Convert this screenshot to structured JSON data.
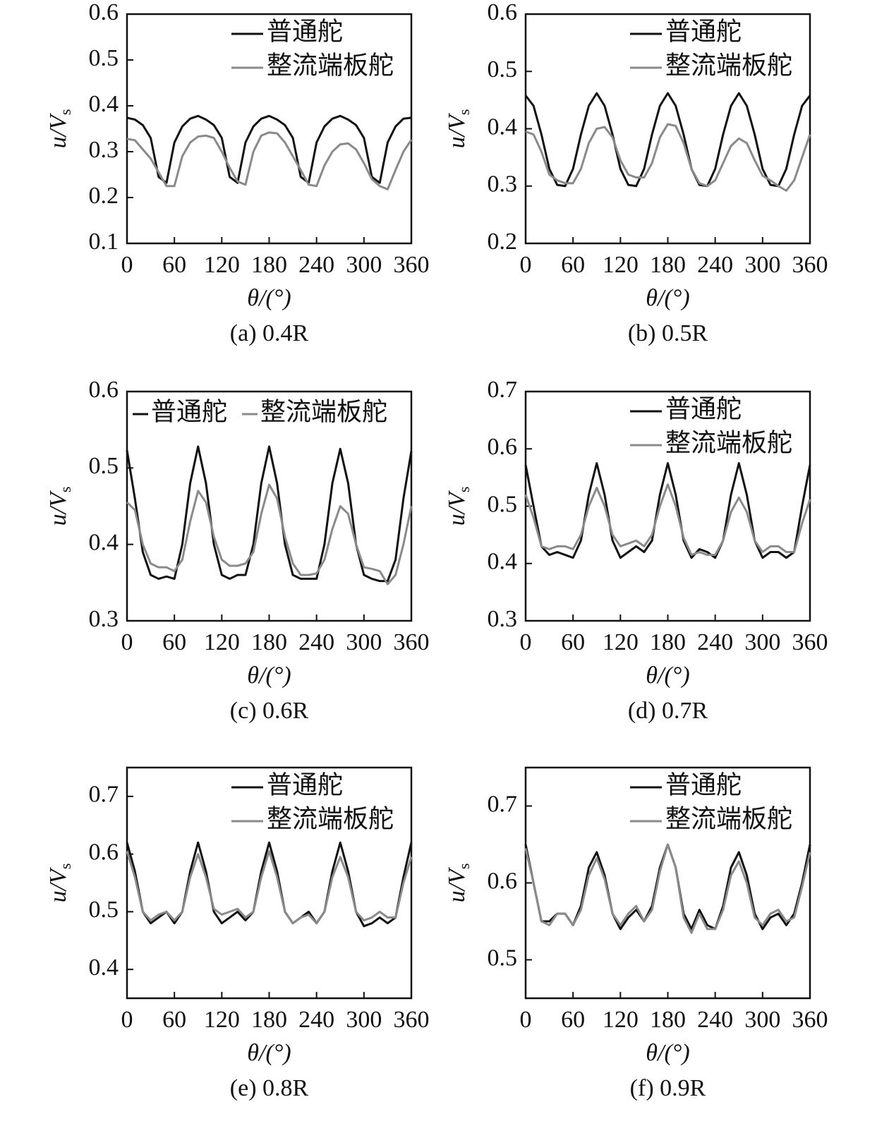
{
  "chart_data": [
    {
      "type": "line",
      "caption": "(a) 0.4R",
      "ylabel": "u/V",
      "ylabel_sub": "s",
      "xlabel": "θ/(°)",
      "x": [
        0,
        10,
        20,
        30,
        40,
        50,
        60,
        70,
        80,
        90,
        100,
        110,
        120,
        130,
        140,
        150,
        160,
        170,
        180,
        190,
        200,
        210,
        220,
        230,
        240,
        250,
        260,
        270,
        280,
        290,
        300,
        310,
        320,
        330,
        340,
        350,
        360
      ],
      "xlim": [
        0,
        360
      ],
      "xticks": [
        0,
        60,
        120,
        180,
        240,
        300,
        360
      ],
      "ylim": [
        0.1,
        0.6
      ],
      "yticks": [
        0.1,
        0.2,
        0.3,
        0.4,
        0.5,
        0.6
      ],
      "legend": "upper right",
      "legend_layout": "column",
      "series": [
        {
          "name": "普通舵",
          "color": "#111111",
          "values": [
            0.374,
            0.37,
            0.358,
            0.33,
            0.245,
            0.232,
            0.32,
            0.355,
            0.372,
            0.378,
            0.37,
            0.358,
            0.33,
            0.245,
            0.232,
            0.32,
            0.355,
            0.372,
            0.378,
            0.37,
            0.358,
            0.33,
            0.245,
            0.232,
            0.32,
            0.355,
            0.372,
            0.378,
            0.37,
            0.358,
            0.33,
            0.245,
            0.232,
            0.32,
            0.355,
            0.372,
            0.374
          ]
        },
        {
          "name": "整流端板舵",
          "color": "#8a8a8a",
          "values": [
            0.328,
            0.325,
            0.305,
            0.285,
            0.255,
            0.225,
            0.225,
            0.29,
            0.32,
            0.333,
            0.335,
            0.33,
            0.3,
            0.265,
            0.235,
            0.228,
            0.3,
            0.335,
            0.342,
            0.34,
            0.32,
            0.29,
            0.26,
            0.228,
            0.225,
            0.27,
            0.3,
            0.316,
            0.318,
            0.305,
            0.275,
            0.24,
            0.225,
            0.218,
            0.26,
            0.3,
            0.326
          ]
        }
      ]
    },
    {
      "type": "line",
      "caption": "(b) 0.5R",
      "ylabel": "u/V",
      "ylabel_sub": "s",
      "xlabel": "θ/(°)",
      "x": [
        0,
        10,
        20,
        30,
        40,
        50,
        60,
        70,
        80,
        90,
        100,
        110,
        120,
        130,
        140,
        150,
        160,
        170,
        180,
        190,
        200,
        210,
        220,
        230,
        240,
        250,
        260,
        270,
        280,
        290,
        300,
        310,
        320,
        330,
        340,
        350,
        360
      ],
      "xlim": [
        0,
        360
      ],
      "xticks": [
        0,
        60,
        120,
        180,
        240,
        300,
        360
      ],
      "ylim": [
        0.2,
        0.6
      ],
      "yticks": [
        0.2,
        0.3,
        0.4,
        0.5,
        0.6
      ],
      "legend": "upper right",
      "legend_layout": "column",
      "series": [
        {
          "name": "普通舵",
          "color": "#111111",
          "values": [
            0.458,
            0.44,
            0.39,
            0.33,
            0.302,
            0.3,
            0.33,
            0.39,
            0.44,
            0.462,
            0.44,
            0.39,
            0.33,
            0.302,
            0.3,
            0.33,
            0.39,
            0.44,
            0.462,
            0.44,
            0.39,
            0.33,
            0.302,
            0.3,
            0.33,
            0.39,
            0.44,
            0.462,
            0.44,
            0.39,
            0.33,
            0.302,
            0.3,
            0.33,
            0.39,
            0.44,
            0.458
          ]
        },
        {
          "name": "整流端板舵",
          "color": "#8a8a8a",
          "values": [
            0.395,
            0.39,
            0.36,
            0.32,
            0.31,
            0.305,
            0.305,
            0.33,
            0.375,
            0.4,
            0.403,
            0.385,
            0.345,
            0.32,
            0.315,
            0.315,
            0.34,
            0.385,
            0.408,
            0.405,
            0.375,
            0.33,
            0.305,
            0.3,
            0.31,
            0.34,
            0.37,
            0.383,
            0.375,
            0.345,
            0.318,
            0.31,
            0.3,
            0.292,
            0.31,
            0.35,
            0.39
          ]
        }
      ]
    },
    {
      "type": "line",
      "caption": "(c) 0.6R",
      "ylabel": "u/V",
      "ylabel_sub": "s",
      "xlabel": "θ/(°)",
      "x": [
        0,
        10,
        20,
        30,
        40,
        50,
        60,
        70,
        80,
        90,
        100,
        110,
        120,
        130,
        140,
        150,
        160,
        170,
        180,
        190,
        200,
        210,
        220,
        230,
        240,
        250,
        260,
        270,
        280,
        290,
        300,
        310,
        320,
        330,
        340,
        350,
        360
      ],
      "xlim": [
        0,
        360
      ],
      "xticks": [
        0,
        60,
        120,
        180,
        240,
        300,
        360
      ],
      "ylim": [
        0.3,
        0.6
      ],
      "yticks": [
        0.3,
        0.4,
        0.5,
        0.6
      ],
      "legend": "upper right",
      "legend_layout": "row",
      "series": [
        {
          "name": "普通舵",
          "color": "#111111",
          "values": [
            0.523,
            0.46,
            0.39,
            0.36,
            0.355,
            0.358,
            0.355,
            0.4,
            0.48,
            0.528,
            0.48,
            0.4,
            0.36,
            0.355,
            0.36,
            0.36,
            0.4,
            0.48,
            0.528,
            0.48,
            0.4,
            0.36,
            0.355,
            0.355,
            0.355,
            0.4,
            0.48,
            0.525,
            0.48,
            0.4,
            0.36,
            0.355,
            0.352,
            0.352,
            0.38,
            0.46,
            0.522
          ]
        },
        {
          "name": "整流端板舵",
          "color": "#8a8a8a",
          "values": [
            0.455,
            0.445,
            0.4,
            0.375,
            0.37,
            0.37,
            0.365,
            0.38,
            0.43,
            0.47,
            0.455,
            0.41,
            0.38,
            0.372,
            0.372,
            0.375,
            0.39,
            0.44,
            0.478,
            0.46,
            0.41,
            0.375,
            0.36,
            0.36,
            0.362,
            0.38,
            0.42,
            0.45,
            0.44,
            0.4,
            0.37,
            0.368,
            0.365,
            0.348,
            0.36,
            0.4,
            0.45
          ]
        }
      ]
    },
    {
      "type": "line",
      "caption": "(d) 0.7R",
      "ylabel": "u/V",
      "ylabel_sub": "s",
      "xlabel": "θ/(°)",
      "x": [
        0,
        10,
        20,
        30,
        40,
        50,
        60,
        70,
        80,
        90,
        100,
        110,
        120,
        130,
        140,
        150,
        160,
        170,
        180,
        190,
        200,
        210,
        220,
        230,
        240,
        250,
        260,
        270,
        280,
        290,
        300,
        310,
        320,
        330,
        340,
        350,
        360
      ],
      "xlim": [
        0,
        360
      ],
      "xticks": [
        0,
        60,
        120,
        180,
        240,
        300,
        360
      ],
      "ylim": [
        0.3,
        0.7
      ],
      "yticks": [
        0.3,
        0.4,
        0.5,
        0.6,
        0.7
      ],
      "legend": "upper right",
      "legend_layout": "column",
      "series": [
        {
          "name": "普通舵",
          "color": "#111111",
          "values": [
            0.572,
            0.5,
            0.43,
            0.415,
            0.42,
            0.415,
            0.41,
            0.44,
            0.52,
            0.575,
            0.52,
            0.44,
            0.41,
            0.42,
            0.43,
            0.42,
            0.44,
            0.52,
            0.575,
            0.52,
            0.44,
            0.41,
            0.425,
            0.42,
            0.41,
            0.44,
            0.52,
            0.575,
            0.52,
            0.44,
            0.41,
            0.42,
            0.42,
            0.41,
            0.42,
            0.5,
            0.572
          ]
        },
        {
          "name": "整流端板舵",
          "color": "#8a8a8a",
          "values": [
            0.52,
            0.48,
            0.43,
            0.425,
            0.43,
            0.43,
            0.425,
            0.45,
            0.5,
            0.532,
            0.5,
            0.45,
            0.43,
            0.435,
            0.44,
            0.43,
            0.45,
            0.5,
            0.538,
            0.5,
            0.445,
            0.415,
            0.42,
            0.415,
            0.415,
            0.44,
            0.49,
            0.515,
            0.49,
            0.44,
            0.42,
            0.43,
            0.43,
            0.42,
            0.42,
            0.47,
            0.512
          ]
        }
      ]
    },
    {
      "type": "line",
      "caption": "(e) 0.8R",
      "ylabel": "u/V",
      "ylabel_sub": "s",
      "xlabel": "θ/(°)",
      "x": [
        0,
        10,
        20,
        30,
        40,
        50,
        60,
        70,
        80,
        90,
        100,
        110,
        120,
        130,
        140,
        150,
        160,
        170,
        180,
        190,
        200,
        210,
        220,
        230,
        240,
        250,
        260,
        270,
        280,
        290,
        300,
        310,
        320,
        330,
        340,
        350,
        360
      ],
      "xlim": [
        0,
        360
      ],
      "xticks": [
        0,
        60,
        120,
        180,
        240,
        300,
        360
      ],
      "ylim": [
        0.35,
        0.75
      ],
      "yticks": [
        0.4,
        0.5,
        0.6,
        0.7
      ],
      "legend": "upper right",
      "legend_layout": "column",
      "series": [
        {
          "name": "普通舵",
          "color": "#111111",
          "values": [
            0.62,
            0.57,
            0.5,
            0.48,
            0.49,
            0.5,
            0.48,
            0.5,
            0.57,
            0.62,
            0.57,
            0.5,
            0.48,
            0.49,
            0.5,
            0.485,
            0.5,
            0.57,
            0.62,
            0.57,
            0.5,
            0.48,
            0.49,
            0.5,
            0.48,
            0.5,
            0.57,
            0.62,
            0.57,
            0.5,
            0.475,
            0.48,
            0.49,
            0.48,
            0.49,
            0.56,
            0.62
          ]
        },
        {
          "name": "整流端板舵",
          "color": "#8a8a8a",
          "values": [
            0.605,
            0.56,
            0.5,
            0.485,
            0.495,
            0.5,
            0.485,
            0.5,
            0.56,
            0.6,
            0.56,
            0.505,
            0.495,
            0.5,
            0.505,
            0.49,
            0.5,
            0.56,
            0.605,
            0.56,
            0.5,
            0.48,
            0.49,
            0.495,
            0.48,
            0.5,
            0.56,
            0.595,
            0.56,
            0.5,
            0.485,
            0.49,
            0.5,
            0.49,
            0.49,
            0.55,
            0.595
          ]
        }
      ]
    },
    {
      "type": "line",
      "caption": "(f) 0.9R",
      "ylabel": "u/V",
      "ylabel_sub": "s",
      "xlabel": "θ/(°)",
      "x": [
        0,
        10,
        20,
        30,
        40,
        50,
        60,
        70,
        80,
        90,
        100,
        110,
        120,
        130,
        140,
        150,
        160,
        170,
        180,
        190,
        200,
        210,
        220,
        230,
        240,
        250,
        260,
        270,
        280,
        290,
        300,
        310,
        320,
        330,
        340,
        350,
        360
      ],
      "xlim": [
        0,
        360
      ],
      "xticks": [
        0,
        60,
        120,
        180,
        240,
        300,
        360
      ],
      "ylim": [
        0.45,
        0.75
      ],
      "yticks": [
        0.5,
        0.6,
        0.7
      ],
      "legend": "upper right",
      "legend_layout": "column",
      "series": [
        {
          "name": "普通舵",
          "color": "#111111",
          "values": [
            0.65,
            0.6,
            0.55,
            0.55,
            0.56,
            0.56,
            0.545,
            0.57,
            0.62,
            0.64,
            0.61,
            0.56,
            0.54,
            0.555,
            0.565,
            0.55,
            0.57,
            0.62,
            0.65,
            0.62,
            0.56,
            0.54,
            0.565,
            0.545,
            0.54,
            0.57,
            0.62,
            0.64,
            0.61,
            0.56,
            0.54,
            0.555,
            0.56,
            0.545,
            0.56,
            0.6,
            0.65
          ]
        },
        {
          "name": "整流端板舵",
          "color": "#8a8a8a",
          "values": [
            0.645,
            0.6,
            0.55,
            0.545,
            0.56,
            0.56,
            0.545,
            0.565,
            0.61,
            0.632,
            0.605,
            0.56,
            0.545,
            0.56,
            0.57,
            0.55,
            0.565,
            0.615,
            0.65,
            0.62,
            0.555,
            0.535,
            0.56,
            0.54,
            0.54,
            0.565,
            0.61,
            0.628,
            0.6,
            0.555,
            0.545,
            0.56,
            0.565,
            0.55,
            0.555,
            0.595,
            0.64
          ]
        }
      ]
    }
  ]
}
